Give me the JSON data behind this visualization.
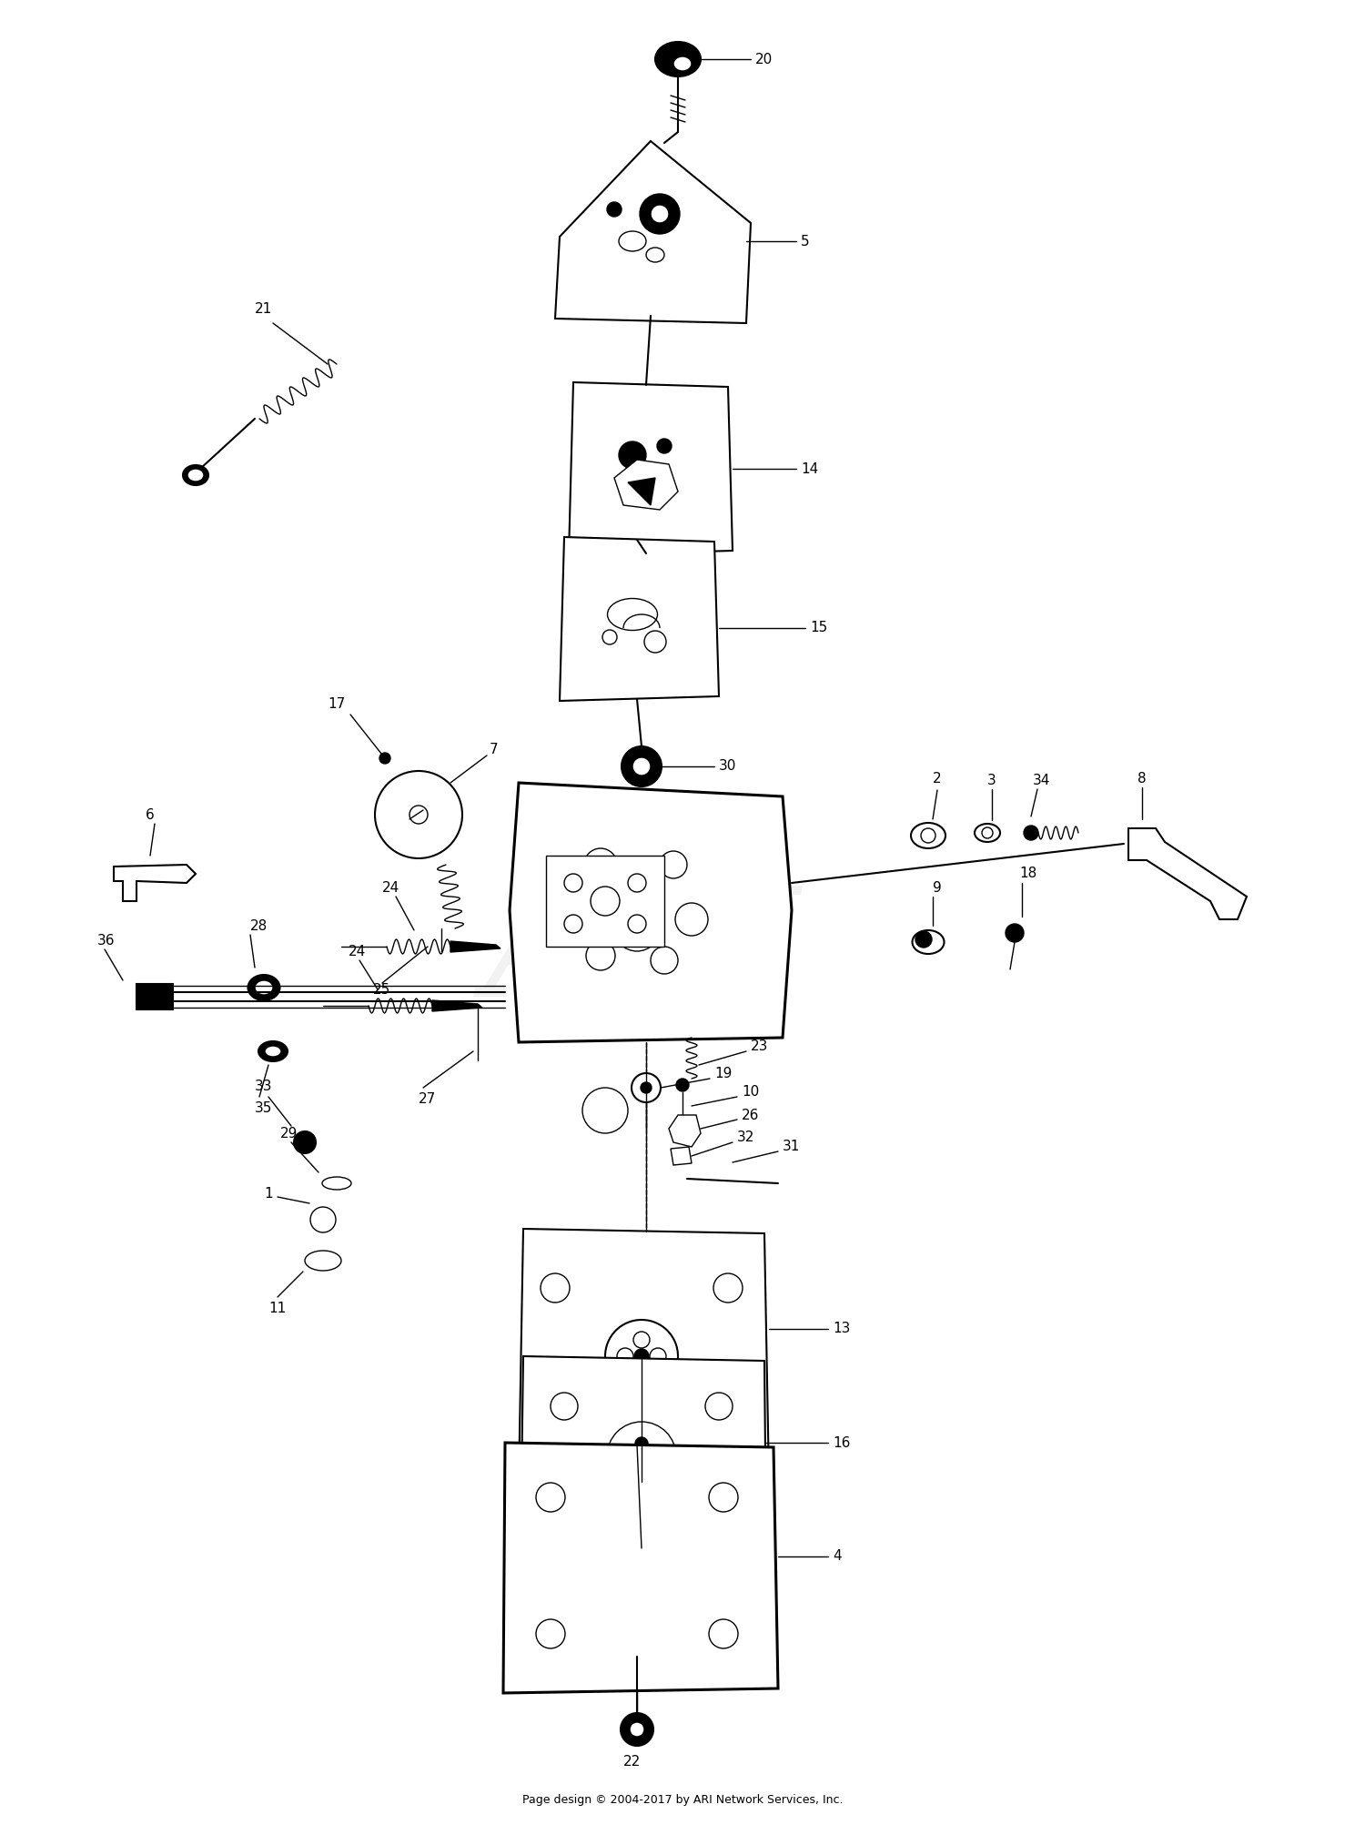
{
  "figsize": [
    15.0,
    20.16
  ],
  "dpi": 100,
  "background_color": "#ffffff",
  "line_color": "#000000",
  "footer": "Page design © 2004-2017 by ARI Network Services, Inc.",
  "watermark": "ARI",
  "lw_thin": 1.0,
  "lw_med": 1.5,
  "lw_thick": 2.2,
  "label_fontsize": 11,
  "footer_fontsize": 9
}
